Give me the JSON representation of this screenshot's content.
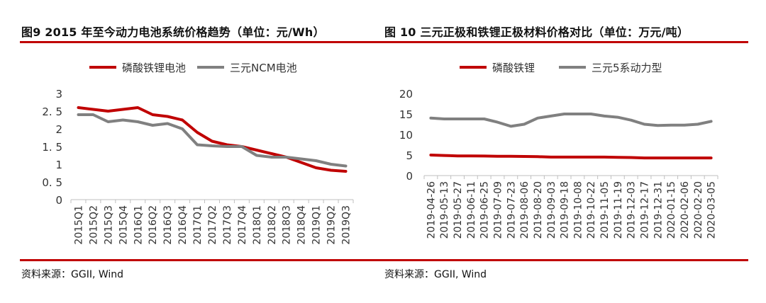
{
  "panels": [
    {
      "title": "图9 2015 年至今动力电池系统价格趋势（单位：元/Wh）",
      "source": "资料来源：GGII, Wind"
    },
    {
      "title": "图 10 三元正极和铁锂正极材料价格对比（单位：万元/吨）",
      "source": "资料来源：GGII, Wind"
    }
  ],
  "colors": {
    "red": "#c00000",
    "gray": "#808080",
    "rule": "#c00000"
  },
  "chart_data": [
    {
      "type": "line",
      "title": "",
      "xlabel": "",
      "ylabel": "",
      "ylim": [
        0,
        3
      ],
      "yticks": [
        "0",
        "0. 5",
        "1",
        "1. 5",
        "2",
        "2. 5",
        "3"
      ],
      "grid": false,
      "legend_position": "top",
      "categories": [
        "2015Q1",
        "2015Q2",
        "2015Q3",
        "2015Q4",
        "2016Q1",
        "2016Q2",
        "2016Q3",
        "2016Q4",
        "2017Q1",
        "2017Q2",
        "2017Q3",
        "2017Q4",
        "2018Q1",
        "2018Q2",
        "2018Q3",
        "2018Q4",
        "2019Q1",
        "2019Q2",
        "2019Q3"
      ],
      "series": [
        {
          "name": "磷酸铁锂电池",
          "color": "#c00000",
          "values": [
            2.6,
            2.55,
            2.5,
            2.55,
            2.6,
            2.4,
            2.35,
            2.25,
            1.9,
            1.65,
            1.55,
            1.5,
            1.4,
            1.3,
            1.2,
            1.05,
            0.9,
            0.83,
            0.8
          ]
        },
        {
          "name": "三元NCM电池",
          "color": "#808080",
          "values": [
            2.4,
            2.4,
            2.2,
            2.25,
            2.2,
            2.1,
            2.15,
            2.0,
            1.55,
            1.52,
            1.5,
            1.5,
            1.25,
            1.2,
            1.2,
            1.15,
            1.1,
            1.0,
            0.95
          ]
        }
      ]
    },
    {
      "type": "line",
      "title": "",
      "xlabel": "",
      "ylabel": "",
      "ylim": [
        0,
        20
      ],
      "yticks": [
        "0",
        "5",
        "10",
        "15",
        "20"
      ],
      "grid": false,
      "legend_position": "top",
      "categories": [
        "2019-04-26",
        "2019-05-13",
        "2019-05-27",
        "2019-06-11",
        "2019-06-25",
        "2019-07-09",
        "2019-07-23",
        "2019-08-06",
        "2019-08-20",
        "2019-09-03",
        "2019-09-18",
        "2019-10-08",
        "2019-10-22",
        "2019-11-05",
        "2019-11-19",
        "2019-12-03",
        "2019-12-17",
        "2019-12-31",
        "2020-01-15",
        "2020-02-06",
        "2020-02-20",
        "2020-03-05"
      ],
      "series": [
        {
          "name": "磷酸铁锂",
          "color": "#c00000",
          "values": [
            5.0,
            4.9,
            4.8,
            4.8,
            4.75,
            4.7,
            4.7,
            4.65,
            4.6,
            4.5,
            4.5,
            4.5,
            4.5,
            4.5,
            4.45,
            4.4,
            4.3,
            4.3,
            4.3,
            4.3,
            4.3,
            4.3
          ]
        },
        {
          "name": "三元5系动力型",
          "color": "#808080",
          "values": [
            14.0,
            13.8,
            13.8,
            13.8,
            13.8,
            13.0,
            12.0,
            12.5,
            14.0,
            14.5,
            15.0,
            15.0,
            15.0,
            14.5,
            14.2,
            13.5,
            12.5,
            12.2,
            12.3,
            12.3,
            12.5,
            13.2
          ]
        }
      ]
    }
  ]
}
